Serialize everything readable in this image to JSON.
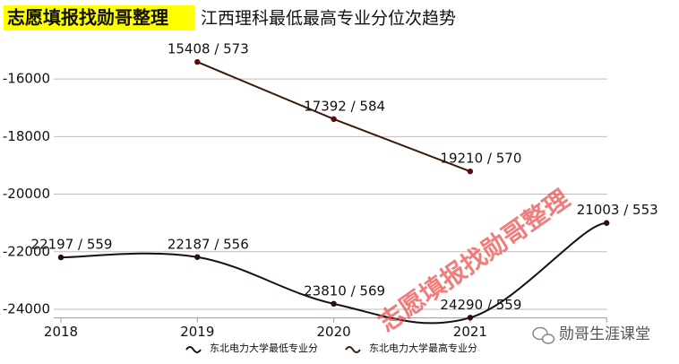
{
  "chart_data": {
    "type": "line",
    "title": "志愿填报找勋哥整理",
    "subtitle": "江西理科最低最高专业分位次趋势",
    "watermark": "志愿填报找勋哥整理",
    "brand": "勋哥生涯课堂",
    "categories": [
      "2018",
      "2019",
      "2020",
      "2021",
      null
    ],
    "series": [
      {
        "name": "东北电力大学最低专业分",
        "color": "#1c0c14",
        "values": [
          -22197,
          -22187,
          -23810,
          -24290,
          -21003
        ],
        "value_labels": [
          "22197 / 559",
          "22187 / 556",
          "23810 / 569",
          "24290 / 559",
          "21003 / 553"
        ]
      },
      {
        "name": "东北电力大学最高专业分",
        "color": "#3a1a08",
        "values": [
          null,
          -15408,
          -17392,
          -19210,
          null
        ],
        "value_labels": [
          null,
          "15408 / 573",
          "17392 / 584",
          "19210 / 570",
          null
        ]
      }
    ],
    "ylim": [
      -24300,
      -15000
    ],
    "yticks": [
      -24000,
      -22000,
      -20000,
      -18000,
      -16000
    ],
    "grid": true,
    "smooth_series": [
      0
    ],
    "legend": "bottom"
  }
}
